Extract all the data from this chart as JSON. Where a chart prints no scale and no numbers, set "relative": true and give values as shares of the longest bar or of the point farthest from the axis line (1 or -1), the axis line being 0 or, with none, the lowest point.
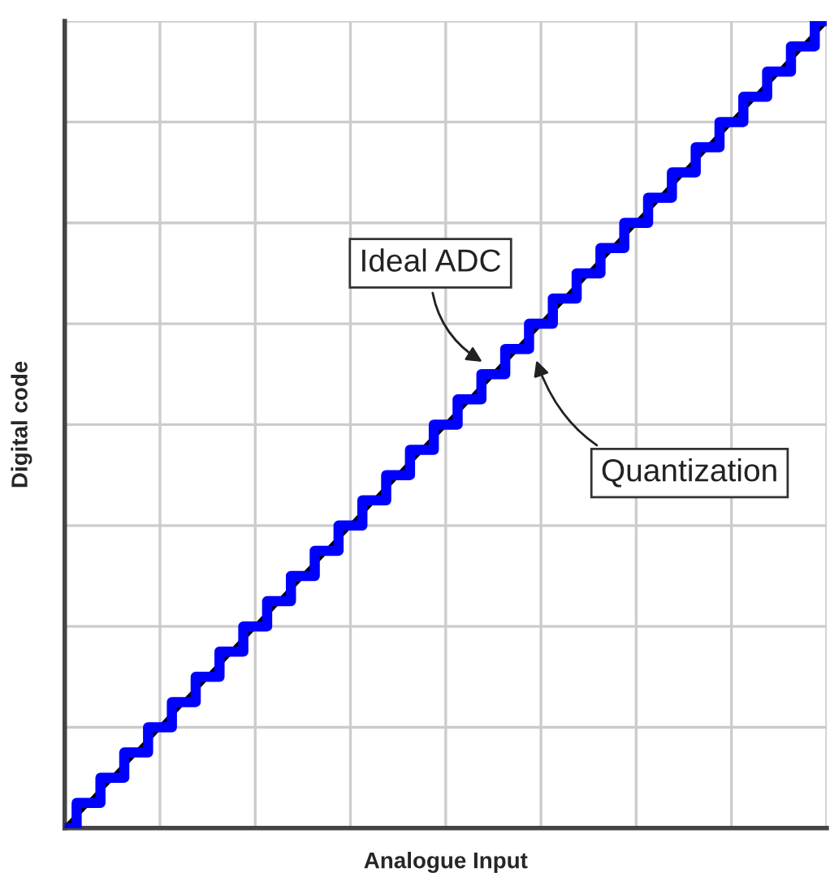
{
  "chart_data": {
    "type": "line",
    "xlabel": "Analogue Input",
    "ylabel": "Digital code",
    "relative": true,
    "grid": true,
    "categories": [
      null,
      null,
      null,
      null,
      null,
      null,
      null,
      null,
      null,
      null,
      null,
      null,
      null,
      null,
      null,
      null,
      null,
      null,
      null,
      null,
      null,
      null,
      null,
      null,
      null,
      null,
      null,
      null,
      null,
      null,
      null,
      null,
      null
    ],
    "series": [
      {
        "color": "#000000",
        "values": [
          0,
          0.03125,
          0.0625,
          0.09375,
          0.125,
          0.15625,
          0.1875,
          0.21875,
          0.25,
          0.28125,
          0.3125,
          0.34375,
          0.375,
          0.40625,
          0.4375,
          0.46875,
          0.5,
          0.53125,
          0.5625,
          0.59375,
          0.625,
          0.65625,
          0.6875,
          0.71875,
          0.75,
          0.78125,
          0.8125,
          0.84375,
          0.875,
          0.90625,
          0.9375,
          0.96875,
          1
        ]
      },
      {
        "type": "step",
        "color": "#0000ff",
        "values": [
          0,
          0.03125,
          0.0625,
          0.09375,
          0.125,
          0.15625,
          0.1875,
          0.21875,
          0.25,
          0.28125,
          0.3125,
          0.34375,
          0.375,
          0.40625,
          0.4375,
          0.46875,
          0.5,
          0.53125,
          0.5625,
          0.59375,
          0.625,
          0.65625,
          0.6875,
          0.71875,
          0.75,
          0.78125,
          0.8125,
          0.84375,
          0.875,
          0.90625,
          0.9375,
          0.96875,
          1
        ]
      }
    ],
    "annotations": [
      "Ideal ADC",
      "Quantization"
    ]
  }
}
